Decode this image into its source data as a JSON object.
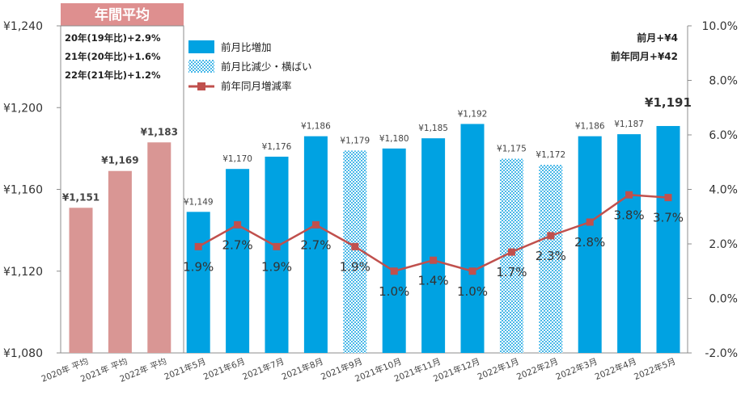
{
  "chart_data": {
    "type": "bar",
    "title_badge": "年間平均",
    "categories": [
      "2020年 平均",
      "2021年 平均",
      "2022年 平均",
      "2021年5月",
      "2021年6月",
      "2021年7月",
      "2021年8月",
      "2021年9月",
      "2021年10月",
      "2021年11月",
      "2021年12月",
      "2022年1月",
      "2022年2月",
      "2022年3月",
      "2022年4月",
      "2022年5月"
    ],
    "values": [
      1151,
      1169,
      1183,
      1149,
      1170,
      1176,
      1186,
      1179,
      1180,
      1185,
      1192,
      1175,
      1172,
      1186,
      1187,
      1191
    ],
    "value_labels": [
      "¥1,151",
      "¥1,169",
      "¥1,183",
      "¥1,149",
      "¥1,170",
      "¥1,176",
      "¥1,186",
      "¥1,179",
      "¥1,180",
      "¥1,185",
      "¥1,192",
      "¥1,175",
      "¥1,172",
      "¥1,186",
      "¥1,187",
      "¥1,191"
    ],
    "bar_kinds": [
      "annual",
      "annual",
      "annual",
      "increase",
      "increase",
      "increase",
      "increase",
      "decrease",
      "increase",
      "increase",
      "increase",
      "decrease",
      "decrease",
      "increase",
      "increase",
      "increase"
    ],
    "yoy_rate": {
      "name": "前年同月増減率",
      "values": [
        1.9,
        2.7,
        1.9,
        2.7,
        1.9,
        1.0,
        1.4,
        1.0,
        1.7,
        2.3,
        2.8,
        3.8,
        3.7
      ],
      "labels": [
        "1.9%",
        "2.7%",
        "1.9%",
        "2.7%",
        "1.9%",
        "1.0%",
        "1.4%",
        "1.0%",
        "1.7%",
        "2.3%",
        "2.8%",
        "3.8%",
        "3.7%"
      ]
    },
    "y_left": {
      "min": 1080,
      "max": 1240,
      "ticks": [
        1080,
        1120,
        1160,
        1200,
        1240
      ],
      "tick_labels": [
        "¥1,080",
        "¥1,120",
        "¥1,160",
        "¥1,200",
        "¥1,240"
      ]
    },
    "y_right": {
      "min": -2.0,
      "max": 10.0,
      "ticks": [
        -2,
        0,
        2,
        4,
        6,
        8,
        10
      ],
      "tick_labels": [
        "-2.0%",
        "0.0%",
        "2.0%",
        "4.0%",
        "6.0%",
        "8.0%",
        "10.0%"
      ]
    },
    "legend": [
      "前月比増加",
      "前月比減少・横ばい",
      "前年同月増減率"
    ],
    "annual_notes": [
      "20年(19年比)+2.9%",
      "21年(20年比)+1.6%",
      "22年(21年比)+1.2%"
    ],
    "summary_notes": [
      "前月+¥4",
      "前年同月+¥42"
    ],
    "colors": {
      "annual": "#d99694",
      "increase": "#00a2e2",
      "decrease_base": "#ffffff",
      "decrease_dot": "#49b8e8",
      "line": "#c0504d",
      "badge": "#de8f8f",
      "axis": "#808080",
      "text": "#333333"
    }
  }
}
